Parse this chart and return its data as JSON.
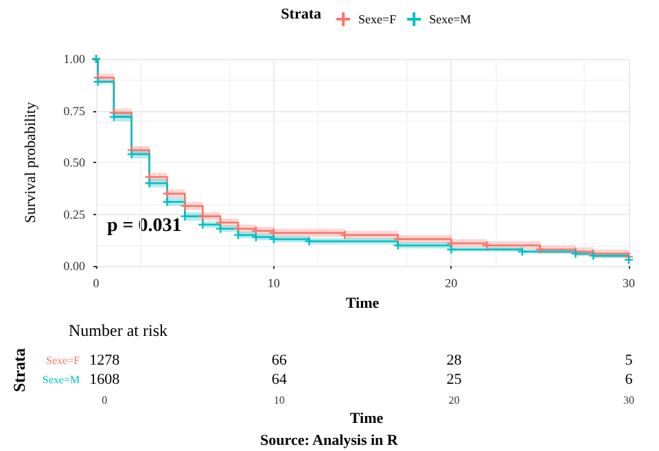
{
  "chart_data": [
    {
      "type": "step",
      "xlabel": "Time",
      "ylabel": "Survival probability",
      "legend_title": "Strata",
      "legend": "top",
      "grid": true,
      "marker": "cross",
      "line_style": "solid",
      "annotations": [
        "p = 0.031"
      ],
      "xlim": [
        0,
        30
      ],
      "xticks": [
        0,
        10,
        20,
        30
      ],
      "ylim": [
        0,
        1
      ],
      "yticks": [
        {
          "value": 0,
          "label": "0.00"
        },
        {
          "value": 0.25,
          "label": "0.25"
        },
        {
          "value": 0.5,
          "label": "0.50"
        },
        {
          "value": 0.75,
          "label": "0.75"
        },
        {
          "value": 1,
          "label": "1.00"
        }
      ],
      "series": [
        {
          "name": "Sexe=F",
          "color": "#f8766d",
          "x": [
            0,
            0.1,
            1,
            2,
            3,
            4,
            5,
            6,
            7,
            8,
            9,
            10,
            14,
            17,
            20,
            22,
            25,
            27,
            28,
            30
          ],
          "values": [
            1,
            0.91,
            0.74,
            0.56,
            0.43,
            0.35,
            0.29,
            0.24,
            0.21,
            0.18,
            0.17,
            0.16,
            0.15,
            0.13,
            0.11,
            0.1,
            0.08,
            0.07,
            0.06,
            0.045
          ],
          "lower": [
            1,
            0.89,
            0.72,
            0.54,
            0.41,
            0.33,
            0.27,
            0.22,
            0.19,
            0.16,
            0.15,
            0.14,
            0.13,
            0.11,
            0.09,
            0.08,
            0.06,
            0.05,
            0.04,
            0.03
          ],
          "upper": [
            1,
            0.93,
            0.76,
            0.58,
            0.45,
            0.37,
            0.31,
            0.26,
            0.23,
            0.2,
            0.19,
            0.18,
            0.17,
            0.15,
            0.13,
            0.12,
            0.1,
            0.09,
            0.08,
            0.07
          ]
        },
        {
          "name": "Sexe=M",
          "color": "#00bfc4",
          "x": [
            0,
            0.1,
            1,
            2,
            3,
            4,
            5,
            6,
            7,
            8,
            9,
            10,
            12,
            17,
            20,
            24,
            27,
            28,
            30
          ],
          "values": [
            1,
            0.89,
            0.72,
            0.54,
            0.4,
            0.31,
            0.24,
            0.2,
            0.18,
            0.15,
            0.14,
            0.13,
            0.12,
            0.1,
            0.08,
            0.07,
            0.06,
            0.05,
            0.03
          ],
          "lower": [
            1,
            0.88,
            0.7,
            0.52,
            0.38,
            0.29,
            0.22,
            0.185,
            0.165,
            0.135,
            0.125,
            0.115,
            0.105,
            0.085,
            0.07,
            0.06,
            0.05,
            0.04,
            0.02
          ],
          "upper": [
            1,
            0.9,
            0.74,
            0.56,
            0.42,
            0.33,
            0.26,
            0.215,
            0.195,
            0.165,
            0.155,
            0.145,
            0.135,
            0.115,
            0.09,
            0.08,
            0.07,
            0.06,
            0.04
          ]
        }
      ]
    },
    {
      "type": "heatmap",
      "title": "Number at risk",
      "xlabel": "Time",
      "ylabel": "Strata",
      "data_labels": true,
      "annotations": [
        "Source: Analysis in R"
      ],
      "categories": [
        "0",
        "10",
        "20",
        "30"
      ],
      "y_categories": [
        "Sexe=F",
        "Sexe=M"
      ],
      "cells": [
        [
          1278,
          66,
          28,
          5
        ],
        [
          1608,
          64,
          25,
          6
        ]
      ]
    }
  ]
}
